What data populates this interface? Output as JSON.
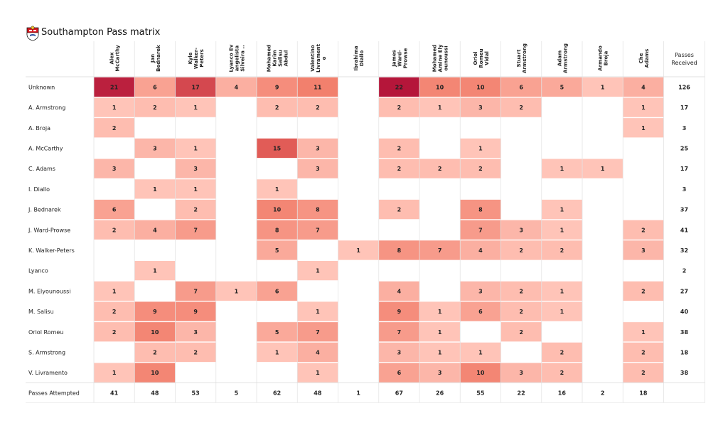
{
  "title": "Southampton Pass matrix",
  "chart_data": {
    "type": "heatmap",
    "title": "Southampton Pass matrix",
    "col_header": "Passes Received",
    "row_footer": "Passes Attempted",
    "receivers": [
      "Alex McCarthy",
      "Jan Bednarek",
      "Kyle Walker-Peters",
      "Lyanco Evangelista Silveira ..",
      "Mohamed Karim Salisu Abdul",
      "Valentino Livramento",
      "Ibrahima Diallo",
      "James Ward-Prowse",
      "Mohamed Amine Elyounoussi",
      "Oriol Romeu Vidal",
      "Stuart Armstrong",
      "Adam Armstrong",
      "Armando Broja",
      "Che Adams"
    ],
    "receiver_label_lines": [
      [
        "Alex",
        "McCarthy"
      ],
      [
        "Jan",
        "Bednarek"
      ],
      [
        "Kyle",
        "Walker-",
        "Peters"
      ],
      [
        "Lyanco Ev",
        "angelista",
        "Silveira .."
      ],
      [
        "Mohamed",
        "Karim",
        "Salisu",
        "Abdul"
      ],
      [
        "Valentino",
        "Livrament",
        "o"
      ],
      [
        "Ibrahima",
        "Diallo"
      ],
      [
        "James",
        "Ward-",
        "Prowse"
      ],
      [
        "Mohamed",
        "Amine Ely",
        "ounoussi"
      ],
      [
        "Oriol",
        "Romeu",
        "Vidal"
      ],
      [
        "Stuart",
        "Armstrong"
      ],
      [
        "Adam",
        "Armstrong"
      ],
      [
        "Armando",
        "Broja"
      ],
      [
        "Che",
        "Adams"
      ]
    ],
    "passers": [
      "Unknown",
      "A. Armstrong",
      "A. Broja",
      "A. McCarthy",
      "C. Adams",
      "I. Diallo",
      "J. Bednarek",
      "J. Ward-Prowse",
      "K. Walker-Peters",
      "Lyanco",
      "M. Elyounoussi",
      "M. Salisu",
      "Oriol Romeu",
      "S. Armstrong",
      "V. Livramento"
    ],
    "values": [
      [
        21,
        6,
        17,
        4,
        9,
        11,
        null,
        22,
        10,
        10,
        6,
        5,
        1,
        4
      ],
      [
        1,
        2,
        1,
        null,
        2,
        2,
        null,
        2,
        1,
        3,
        2,
        null,
        null,
        1
      ],
      [
        2,
        null,
        null,
        null,
        null,
        null,
        null,
        null,
        null,
        null,
        null,
        null,
        null,
        1
      ],
      [
        null,
        3,
        1,
        null,
        15,
        3,
        null,
        2,
        null,
        1,
        null,
        null,
        null,
        null
      ],
      [
        3,
        null,
        3,
        null,
        null,
        3,
        null,
        2,
        2,
        2,
        null,
        1,
        1,
        null
      ],
      [
        null,
        1,
        1,
        null,
        1,
        null,
        null,
        null,
        null,
        null,
        null,
        null,
        null,
        null
      ],
      [
        6,
        null,
        2,
        null,
        10,
        8,
        null,
        2,
        null,
        8,
        null,
        1,
        null,
        null
      ],
      [
        2,
        4,
        7,
        null,
        8,
        7,
        null,
        null,
        null,
        7,
        3,
        1,
        null,
        2
      ],
      [
        null,
        null,
        null,
        null,
        5,
        null,
        1,
        8,
        7,
        4,
        2,
        2,
        null,
        3
      ],
      [
        null,
        1,
        null,
        null,
        null,
        1,
        null,
        null,
        null,
        null,
        null,
        null,
        null,
        null
      ],
      [
        1,
        null,
        7,
        1,
        6,
        null,
        null,
        4,
        null,
        3,
        2,
        1,
        null,
        2
      ],
      [
        2,
        9,
        9,
        null,
        null,
        1,
        null,
        9,
        1,
        6,
        2,
        1,
        null,
        null
      ],
      [
        2,
        10,
        3,
        null,
        5,
        7,
        null,
        7,
        1,
        null,
        2,
        null,
        null,
        1
      ],
      [
        null,
        2,
        2,
        null,
        1,
        4,
        null,
        3,
        1,
        1,
        null,
        2,
        null,
        2
      ],
      [
        1,
        10,
        null,
        null,
        null,
        1,
        null,
        6,
        3,
        10,
        3,
        2,
        null,
        2
      ]
    ],
    "passes_received": [
      126,
      17,
      3,
      25,
      17,
      3,
      37,
      41,
      32,
      2,
      27,
      40,
      38,
      18,
      38
    ],
    "passes_attempted": [
      41,
      48,
      53,
      5,
      62,
      48,
      1,
      67,
      26,
      55,
      22,
      16,
      2,
      18
    ],
    "color_scale": {
      "low": "#ffc4b8",
      "mid": "#f07561",
      "high": "#b5163a"
    }
  }
}
